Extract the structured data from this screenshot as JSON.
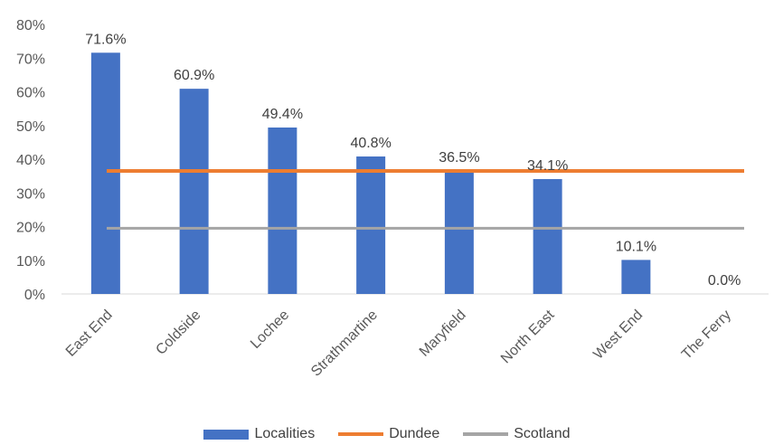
{
  "chart_data": {
    "type": "bar",
    "categories": [
      "East End",
      "Coldside",
      "Lochee",
      "Strathmartine",
      "Maryfield",
      "North East",
      "West End",
      "The Ferry"
    ],
    "series": [
      {
        "name": "Localities",
        "kind": "bar",
        "color": "#4472C4",
        "values": [
          71.6,
          60.9,
          49.4,
          40.8,
          36.5,
          34.1,
          10.1,
          0.0
        ]
      },
      {
        "name": "Dundee",
        "kind": "line",
        "color": "#ED7D31",
        "value": 36.5
      },
      {
        "name": "Scotland",
        "kind": "line",
        "color": "#A5A5A5",
        "value": 19.5
      }
    ],
    "data_labels": [
      "71.6%",
      "60.9%",
      "49.4%",
      "40.8%",
      "36.5%",
      "34.1%",
      "10.1%",
      "0.0%"
    ],
    "y_ticks": [
      "0%",
      "10%",
      "20%",
      "30%",
      "40%",
      "50%",
      "60%",
      "70%",
      "80%"
    ],
    "ylim": [
      0,
      80
    ],
    "y_unit": "%",
    "grid": false,
    "legend_position": "bottom"
  }
}
